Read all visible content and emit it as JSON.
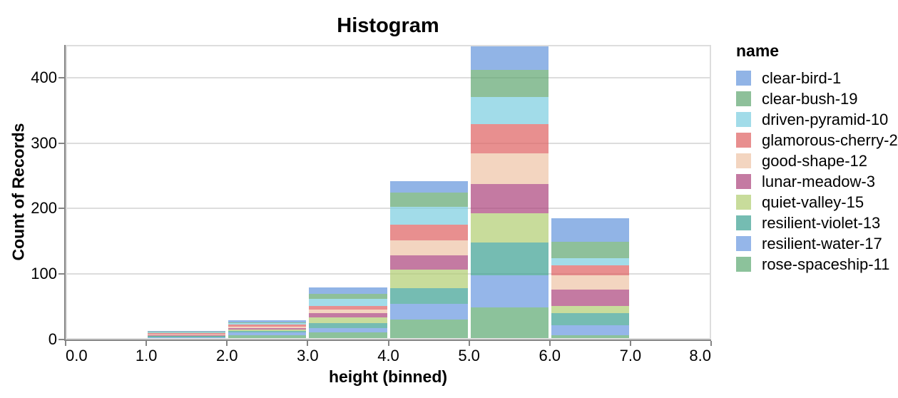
{
  "title": "Histogram",
  "axes": {
    "x": {
      "title": "height (binned)",
      "tick_labels": [
        "0.0",
        "1.0",
        "2.0",
        "3.0",
        "4.0",
        "5.0",
        "6.0",
        "7.0",
        "8.0"
      ],
      "tick_values": [
        0,
        1,
        2,
        3,
        4,
        5,
        6,
        7,
        8
      ],
      "domain": [
        0,
        8
      ]
    },
    "y": {
      "title": "Count of Records",
      "tick_labels": [
        "0",
        "100",
        "200",
        "300",
        "400"
      ],
      "tick_values": [
        0,
        100,
        200,
        300,
        400
      ],
      "domain": [
        0,
        450
      ]
    }
  },
  "legend": {
    "title": "name",
    "position": "right"
  },
  "style": {
    "background": "#ffffff",
    "grid_color": "#dddddd",
    "border_color": "#dddddd",
    "axis_color": "#858585",
    "text_color": "#000000"
  },
  "chart_data": {
    "type": "bar",
    "subtype": "stacked-histogram",
    "title": "Histogram",
    "xlabel": "height (binned)",
    "ylabel": "Count of Records",
    "xlim": [
      0,
      8
    ],
    "ylim": [
      0,
      450
    ],
    "grid": true,
    "legend_position": "right",
    "bin_edges": [
      0,
      1,
      2,
      3,
      4,
      5,
      6,
      7,
      8
    ],
    "bin_totals": [
      2,
      13,
      29,
      80,
      242,
      450,
      185,
      2
    ],
    "stack_order_top_to_bottom": true,
    "series": [
      {
        "name": "clear-bird-1",
        "color": "rgba(99,148,219,0.7)",
        "values": [
          0,
          1,
          3,
          10,
          17,
          38,
          36,
          0
        ]
      },
      {
        "name": "clear-bush-19",
        "color": "rgba(94,165,111,0.7)",
        "values": [
          0,
          1,
          1,
          8,
          22,
          42,
          25,
          0
        ]
      },
      {
        "name": "driven-pyramid-10",
        "color": "rgba(122,205,224,0.7)",
        "values": [
          0,
          1,
          2,
          11,
          27,
          41,
          11,
          0
        ]
      },
      {
        "name": "glamorous-cherry-2",
        "color": "rgba(222,96,95,0.7)",
        "values": [
          0,
          2,
          3,
          5,
          25,
          45,
          15,
          0
        ]
      },
      {
        "name": "good-shape-12",
        "color": "rgba(238,195,165,0.7)",
        "values": [
          0,
          1,
          2,
          6,
          22,
          46,
          22,
          0
        ]
      },
      {
        "name": "lunar-meadow-3",
        "color": "rgba(171,66,122,0.7)",
        "values": [
          0,
          1,
          3,
          6,
          22,
          45,
          25,
          1
        ]
      },
      {
        "name": "quiet-valley-15",
        "color": "rgba(176,205,112,0.7)",
        "values": [
          2,
          1,
          2,
          9,
          29,
          45,
          11,
          0
        ]
      },
      {
        "name": "resilient-violet-13",
        "color": "rgba(59,159,145,0.7)",
        "values": [
          0,
          2,
          2,
          8,
          24,
          50,
          18,
          0
        ]
      },
      {
        "name": "resilient-water-17",
        "color": "rgba(104,151,224,0.7)",
        "values": [
          0,
          1,
          4,
          6,
          24,
          49,
          15,
          1
        ]
      },
      {
        "name": "rose-spaceship-11",
        "color": "rgba(91,168,112,0.7)",
        "values": [
          0,
          2,
          7,
          11,
          30,
          49,
          7,
          0
        ]
      }
    ]
  }
}
